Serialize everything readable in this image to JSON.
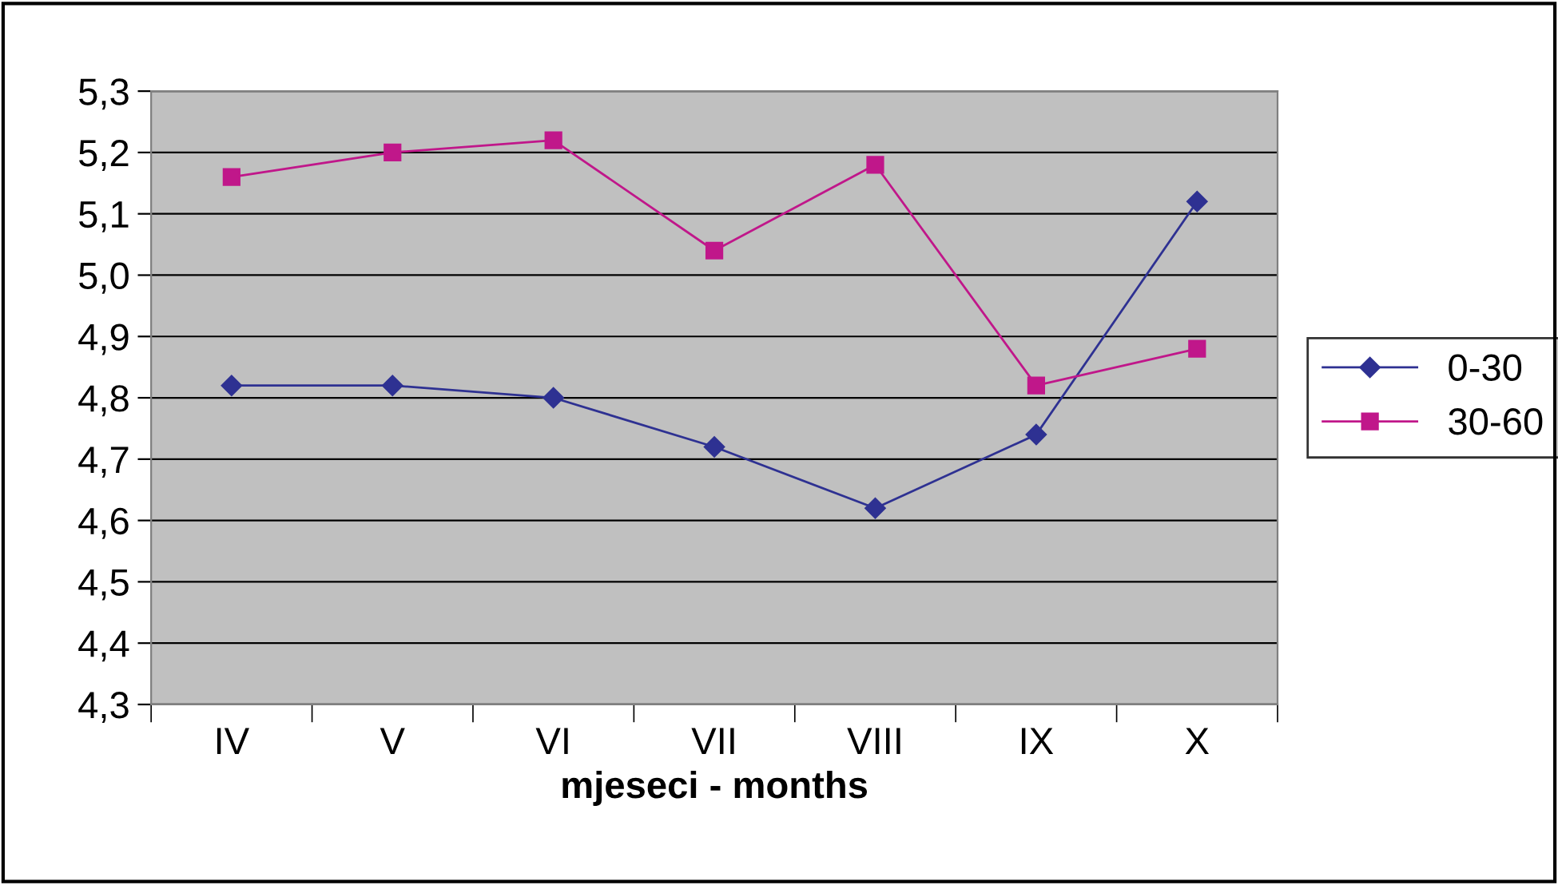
{
  "chart_data": {
    "type": "line",
    "xlabel": "mjeseci - months",
    "categories": [
      "IV",
      "V",
      "VI",
      "VII",
      "VIII",
      "IX",
      "X"
    ],
    "series": [
      {
        "name": "0-30",
        "color": "#2e3192",
        "marker": "diamond",
        "values": [
          4.82,
          4.82,
          4.8,
          4.72,
          4.62,
          4.74,
          5.12
        ]
      },
      {
        "name": "30-60",
        "color": "#c0178a",
        "marker": "square",
        "values": [
          5.16,
          5.2,
          5.22,
          5.04,
          5.18,
          4.82,
          4.88
        ]
      }
    ],
    "ylim": [
      4.3,
      5.3
    ],
    "yticks": [
      {
        "value": 4.3,
        "label": "4,3"
      },
      {
        "value": 4.4,
        "label": "4,4"
      },
      {
        "value": 4.5,
        "label": "4,5"
      },
      {
        "value": 4.6,
        "label": "4,6"
      },
      {
        "value": 4.7,
        "label": "4,7"
      },
      {
        "value": 4.8,
        "label": "4,8"
      },
      {
        "value": 4.9,
        "label": "4,9"
      },
      {
        "value": 5.0,
        "label": "5,0"
      },
      {
        "value": 5.1,
        "label": "5,1"
      },
      {
        "value": 5.2,
        "label": "5,2"
      },
      {
        "value": 5.3,
        "label": "5,3"
      }
    ],
    "grid": "y",
    "legend": "right",
    "line_style": "solid"
  }
}
